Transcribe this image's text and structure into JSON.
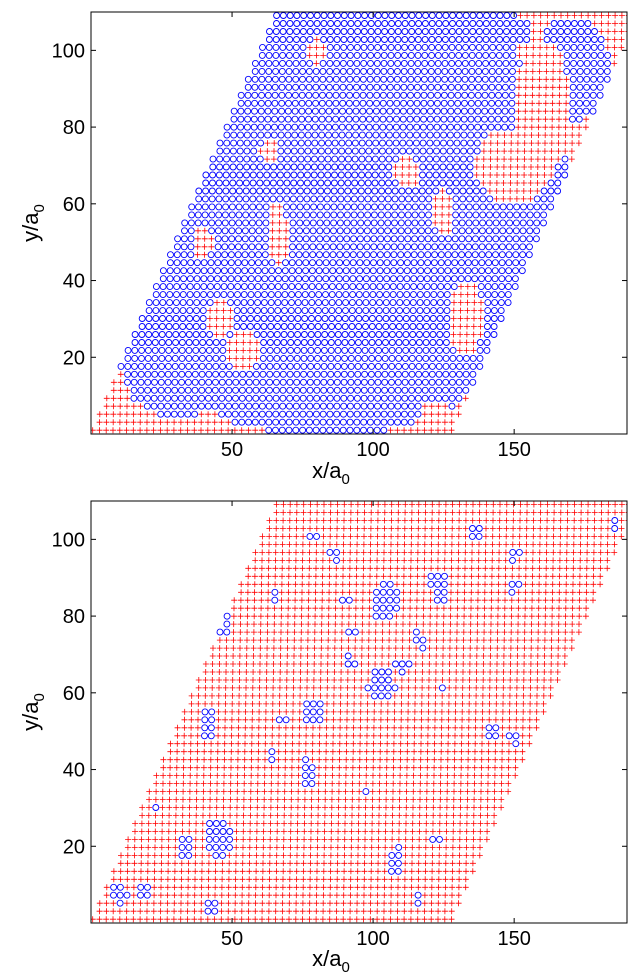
{
  "chart_data": [
    {
      "type": "scatter",
      "title": "",
      "xlabel": "x/a",
      "xlabel_sub": "0",
      "ylabel": "y/a",
      "ylabel_sub": "0",
      "xlim": [
        0,
        190
      ],
      "ylim": [
        0,
        110
      ],
      "xticks": [
        50,
        100,
        150
      ],
      "yticks": [
        20,
        40,
        60,
        80,
        100
      ],
      "grid": false,
      "legend": "none",
      "lattice": {
        "spacing": 2.4,
        "shear": 0.58,
        "x_left": 0,
        "y_top": 110
      },
      "series": [
        {
          "marker": "plus",
          "color": "#ff0000",
          "role": "background"
        },
        {
          "marker": "circle",
          "color": "#0000ff",
          "role": "clusters",
          "regions": [
            {
              "cx": 90,
              "cy": 60,
              "rx": 80,
              "ry": 60
            },
            {
              "cx": 170,
              "cy": 95,
              "rx": 14,
              "ry": 14
            },
            {
              "cx": 140,
              "cy": 40,
              "rx": 12,
              "ry": 16
            },
            {
              "cx": 75,
              "cy": 15,
              "rx": 40,
              "ry": 15
            },
            {
              "cx": 30,
              "cy": 20,
              "rx": 20,
              "ry": 16
            },
            {
              "cx": 118,
              "cy": 105,
              "rx": 38,
              "ry": 8
            }
          ],
          "holes": [
            {
              "cx": 150,
              "cy": 70,
              "rx": 14,
              "ry": 10
            },
            {
              "cx": 160,
              "cy": 85,
              "rx": 10,
              "ry": 18
            },
            {
              "cx": 66,
              "cy": 52,
              "rx": 4,
              "ry": 8
            },
            {
              "cx": 54,
              "cy": 22,
              "rx": 6,
              "ry": 5
            },
            {
              "cx": 112,
              "cy": 68,
              "rx": 5,
              "ry": 4
            },
            {
              "cx": 133,
              "cy": 30,
              "rx": 6,
              "ry": 10
            },
            {
              "cx": 45,
              "cy": 30,
              "rx": 5,
              "ry": 5
            },
            {
              "cx": 63,
              "cy": 74,
              "rx": 3,
              "ry": 3
            },
            {
              "cx": 80,
              "cy": 100,
              "rx": 3,
              "ry": 4
            },
            {
              "cx": 125,
              "cy": 58,
              "rx": 4,
              "ry": 6
            },
            {
              "cx": 122,
              "cy": 4,
              "rx": 6,
              "ry": 5
            },
            {
              "cx": 40,
              "cy": 50,
              "rx": 4,
              "ry": 4
            }
          ]
        }
      ]
    },
    {
      "type": "scatter",
      "title": "",
      "xlabel": "x/a",
      "xlabel_sub": "0",
      "ylabel": "y/a",
      "ylabel_sub": "0",
      "xlim": [
        0,
        190
      ],
      "ylim": [
        0,
        110
      ],
      "xticks": [
        50,
        100,
        150
      ],
      "yticks": [
        20,
        40,
        60,
        80,
        100
      ],
      "grid": false,
      "legend": "none",
      "lattice": {
        "spacing": 2.4,
        "shear": 0.58,
        "x_left": 0,
        "y_top": 110
      },
      "series": [
        {
          "marker": "plus",
          "color": "#ff0000",
          "role": "background"
        },
        {
          "marker": "circle",
          "color": "#0000ff",
          "role": "clusters",
          "regions": [
            {
              "cx": 46,
              "cy": 78,
              "rx": 4,
              "ry": 4
            },
            {
              "cx": 42,
              "cy": 52,
              "rx": 3,
              "ry": 5
            },
            {
              "cx": 45,
              "cy": 22,
              "rx": 5,
              "ry": 5
            },
            {
              "cx": 33,
              "cy": 20,
              "rx": 3,
              "ry": 3
            },
            {
              "cx": 10,
              "cy": 8,
              "rx": 3,
              "ry": 3
            },
            {
              "cx": 18,
              "cy": 8,
              "rx": 2.5,
              "ry": 2.5
            },
            {
              "cx": 43,
              "cy": 4,
              "rx": 3,
              "ry": 3
            },
            {
              "cx": 78,
              "cy": 55,
              "rx": 4,
              "ry": 4
            },
            {
              "cx": 77,
              "cy": 39,
              "rx": 3,
              "ry": 4
            },
            {
              "cx": 68,
              "cy": 53,
              "rx": 2,
              "ry": 2
            },
            {
              "cx": 64,
              "cy": 44,
              "rx": 2,
              "ry": 2
            },
            {
              "cx": 65,
              "cy": 86,
              "rx": 2,
              "ry": 2
            },
            {
              "cx": 79,
              "cy": 101,
              "rx": 2,
              "ry": 2
            },
            {
              "cx": 86,
              "cy": 96,
              "rx": 2,
              "ry": 2
            },
            {
              "cx": 90,
              "cy": 84,
              "rx": 2,
              "ry": 2
            },
            {
              "cx": 93,
              "cy": 76,
              "rx": 2,
              "ry": 2
            },
            {
              "cx": 92,
              "cy": 68,
              "rx": 2,
              "ry": 2
            },
            {
              "cx": 104,
              "cy": 84,
              "rx": 5,
              "ry": 5
            },
            {
              "cx": 103,
              "cy": 62,
              "rx": 5,
              "ry": 4
            },
            {
              "cx": 110,
              "cy": 67,
              "rx": 3,
              "ry": 2
            },
            {
              "cx": 115,
              "cy": 75,
              "rx": 2,
              "ry": 2
            },
            {
              "cx": 118,
              "cy": 72,
              "rx": 2,
              "ry": 2
            },
            {
              "cx": 124,
              "cy": 87,
              "rx": 3,
              "ry": 5
            },
            {
              "cx": 120,
              "cy": 89,
              "rx": 2,
              "ry": 2
            },
            {
              "cx": 137,
              "cy": 102,
              "rx": 3,
              "ry": 2
            },
            {
              "cx": 150,
              "cy": 96,
              "rx": 2,
              "ry": 2
            },
            {
              "cx": 150,
              "cy": 88,
              "rx": 2,
              "ry": 2
            },
            {
              "cx": 142,
              "cy": 50,
              "rx": 2,
              "ry": 2
            },
            {
              "cx": 150,
              "cy": 48,
              "rx": 2,
              "ry": 2
            },
            {
              "cx": 108,
              "cy": 16,
              "rx": 3,
              "ry": 4
            },
            {
              "cx": 122,
              "cy": 22,
              "rx": 2,
              "ry": 2
            },
            {
              "cx": 116,
              "cy": 6,
              "rx": 2,
              "ry": 2
            },
            {
              "cx": 97,
              "cy": 34,
              "rx": 1.5,
              "ry": 1.5
            },
            {
              "cx": 125,
              "cy": 61,
              "rx": 1.5,
              "ry": 1.5
            },
            {
              "cx": 185,
              "cy": 104,
              "rx": 1.5,
              "ry": 1.5
            },
            {
              "cx": 24,
              "cy": 31,
              "rx": 1.5,
              "ry": 1.5
            }
          ],
          "holes": []
        }
      ]
    }
  ]
}
